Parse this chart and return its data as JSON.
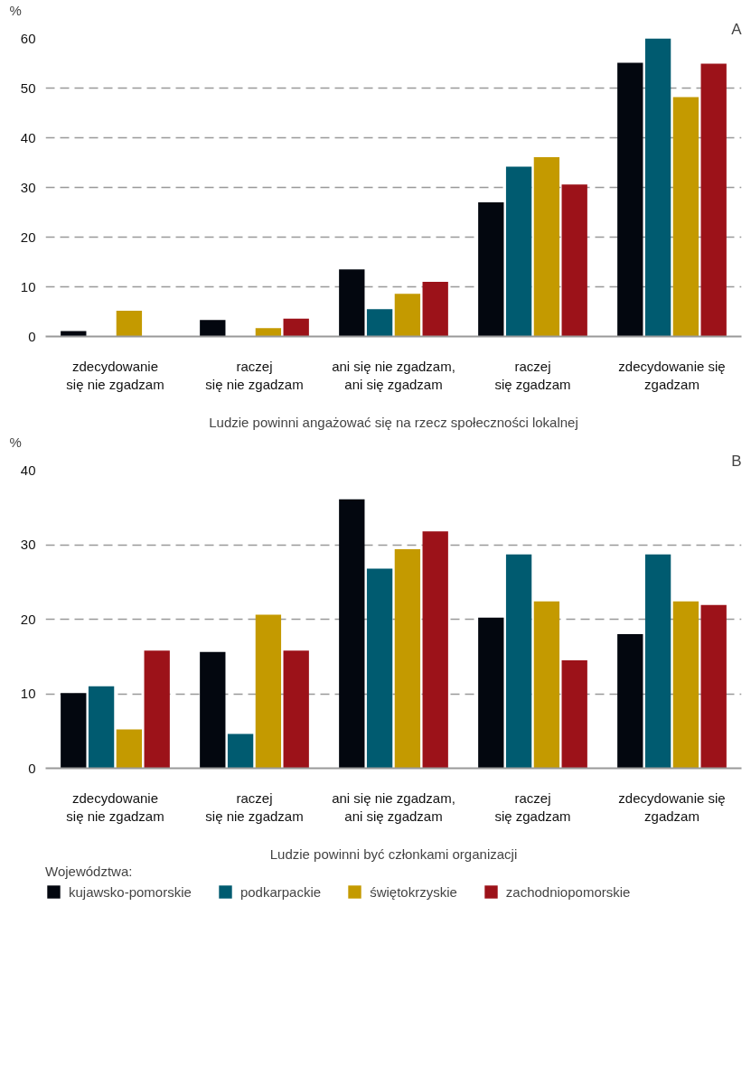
{
  "chart_data": [
    {
      "type": "bar",
      "categories": [
        "zdecydowanie\nsię nie zgadzam",
        "raczej\nsię nie zgadzam",
        "ani się nie zgadzam,\nani się zgadzam",
        "raczej\nsię zgadzam",
        "zdecydowanie się\nzgadzam"
      ],
      "xlabel": "Ludzie powinni angażować się na rzecz społeczności lokalnej",
      "ylabel": "%",
      "series": [
        {
          "color": "#03070f",
          "values": [
            1.1,
            3.3,
            13.5,
            27.0,
            55.1
          ]
        },
        {
          "color": "#005b70",
          "values": [
            null,
            null,
            5.5,
            34.2,
            60.0
          ]
        },
        {
          "color": "#c49a00",
          "values": [
            5.2,
            1.7,
            8.6,
            36.1,
            48.2
          ]
        },
        {
          "color": "#9c1219",
          "values": [
            null,
            3.6,
            11.0,
            30.6,
            54.9
          ]
        }
      ],
      "ylim": [
        0,
        60
      ],
      "yticks": [
        0,
        10,
        20,
        30,
        40,
        50,
        60
      ],
      "grid": "y",
      "annotations": [
        "A"
      ]
    },
    {
      "type": "bar",
      "categories": [
        "zdecydowanie\nsię nie zgadzam",
        "raczej\nsię nie zgadzam",
        "ani się nie zgadzam,\nani się zgadzam",
        "raczej\nsię zgadzam",
        "zdecydowanie się\nzgadzam"
      ],
      "xlabel": "Ludzie powinni być członkami organizacji",
      "ylabel": "%",
      "legend_title": "Województwa:",
      "series": [
        {
          "name": "kujawsko-pomorskie",
          "color": "#03070f",
          "values": [
            10.1,
            15.6,
            36.1,
            20.2,
            18.0
          ]
        },
        {
          "name": "podkarpackie",
          "color": "#005b70",
          "values": [
            11.0,
            4.6,
            26.8,
            28.7,
            28.7
          ]
        },
        {
          "name": "świętokrzyskie",
          "color": "#c49a00",
          "values": [
            5.2,
            20.6,
            29.4,
            22.4,
            22.4
          ]
        },
        {
          "name": "zachodniopomorskie",
          "color": "#9c1219",
          "values": [
            15.8,
            15.8,
            31.8,
            14.5,
            21.9
          ]
        }
      ],
      "ylim": [
        0,
        40
      ],
      "yticks": [
        0,
        10,
        20,
        30,
        40
      ],
      "grid": "y",
      "legend": "bottom",
      "annotations": [
        "B"
      ]
    }
  ]
}
